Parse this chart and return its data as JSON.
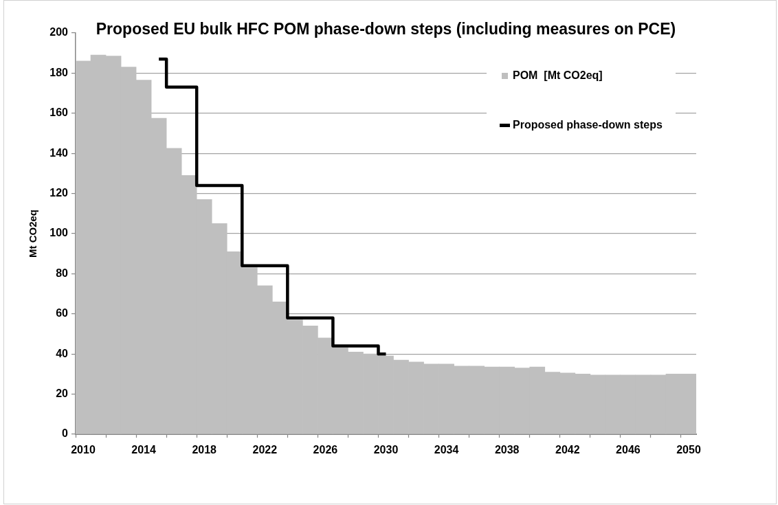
{
  "chart_data": {
    "type": "bar",
    "title": "Proposed EU bulk HFC POM phase-down steps (including measures on PCE)",
    "ylabel": "Mt CO2eq",
    "categories": [
      "2010",
      null,
      null,
      null,
      "2014",
      null,
      null,
      null,
      "2018",
      null,
      null,
      null,
      "2022",
      null,
      null,
      null,
      "2026",
      null,
      null,
      null,
      "2030",
      null,
      null,
      null,
      "2034",
      null,
      null,
      null,
      "2038",
      null,
      null,
      null,
      "2042",
      null,
      null,
      null,
      "2046",
      null,
      null,
      null,
      "2050"
    ],
    "series": [
      {
        "name": "POM  [Mt CO2eq]",
        "color": "#bfbfbf",
        "values": [
          186,
          189,
          188.5,
          183,
          176.5,
          157.5,
          142.5,
          129,
          117,
          105,
          91,
          83,
          74,
          66,
          57,
          54,
          48,
          43,
          41,
          40,
          39,
          37,
          36,
          35,
          35,
          34,
          34,
          33.5,
          33.5,
          33,
          33.5,
          31,
          30.5,
          30,
          29.5,
          29.5,
          29.5,
          29.5,
          29.5,
          30,
          30
        ]
      },
      {
        "name": "Proposed phase-down steps",
        "type": "step",
        "color": "#000000",
        "values": [
          null,
          null,
          null,
          null,
          null,
          187,
          173,
          173,
          124,
          124,
          124,
          84,
          84,
          84,
          58,
          58,
          58,
          44,
          44,
          44,
          40,
          null,
          null,
          null,
          null,
          null,
          null,
          null,
          null,
          null,
          null,
          null,
          null,
          null,
          null,
          null,
          null,
          null,
          null,
          null,
          null
        ]
      }
    ],
    "ylim": [
      0,
      200
    ],
    "yticks": [
      0,
      20,
      40,
      60,
      80,
      100,
      120,
      140,
      160,
      180,
      200
    ],
    "grid": "y",
    "legend": "top right"
  }
}
